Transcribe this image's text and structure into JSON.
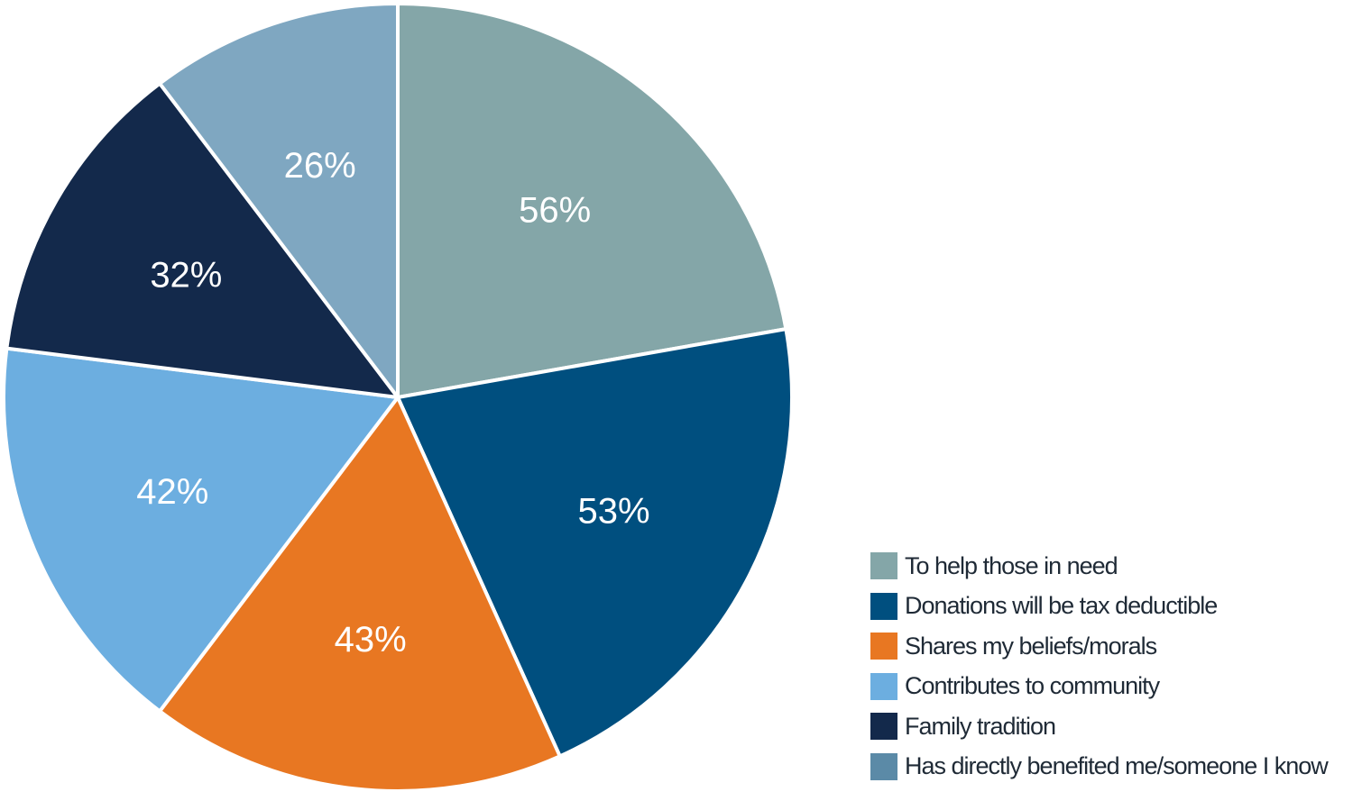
{
  "chart_data": {
    "type": "pie",
    "title": "",
    "slices": [
      {
        "name": "To help those in need",
        "value": 56,
        "label": "56%",
        "color": "#84a6a8"
      },
      {
        "name": "Donations will be tax deductible",
        "value": 53,
        "label": "53%",
        "color": "#004f7f"
      },
      {
        "name": "Shares my beliefs/morals",
        "value": 43,
        "label": "43%",
        "color": "#e87722"
      },
      {
        "name": "Contributes to community",
        "value": 42,
        "label": "42%",
        "color": "#6caee0"
      },
      {
        "name": "Family tradition",
        "value": 32,
        "label": "32%",
        "color": "#13294b"
      },
      {
        "name": "Has directly benefited me/someone I know",
        "value": 26,
        "label": "26%",
        "color": "#7fa7c1"
      }
    ],
    "legend_position": "bottom-right",
    "legend_swatch_colors": [
      "#84a6a8",
      "#004f7f",
      "#e87722",
      "#6caee0",
      "#13294b",
      "#5b8aa7"
    ]
  }
}
